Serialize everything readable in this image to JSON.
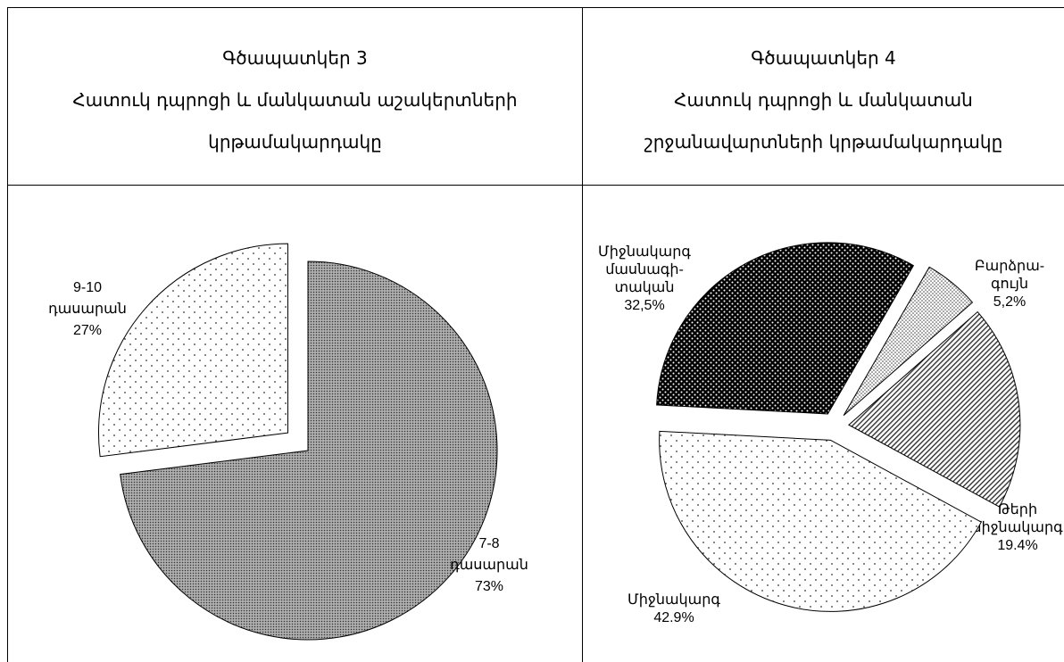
{
  "chart_data": [
    {
      "type": "pie",
      "title": "Գծապատկեր 3",
      "subtitle": "Հատուկ դպրոցի և մանկատան աշակերտների կրթամակարդակը",
      "categories": [
        [
          "7-8",
          "դասարան"
        ],
        [
          "9-10",
          "դասարան"
        ]
      ],
      "values": [
        73,
        27
      ],
      "value_labels": [
        "73%",
        "27%"
      ]
    },
    {
      "type": "pie",
      "title": "Գծապատկեր 4",
      "subtitle": "Հատուկ դպրոցի և մանկատան շրջանավարտների կրթամակարդակը",
      "categories": [
        [
          "Միջնակարգ",
          "մասնագի-",
          "տական"
        ],
        [
          "Բարձրա-",
          "գույն"
        ],
        [
          "Թերի",
          "միջնակարգ"
        ],
        [
          "Միջնակարգ"
        ]
      ],
      "values": [
        32.5,
        5.2,
        19.4,
        42.9
      ],
      "value_labels": [
        "32,5%",
        "5,2%",
        "19.4%",
        "42.9%"
      ]
    }
  ]
}
